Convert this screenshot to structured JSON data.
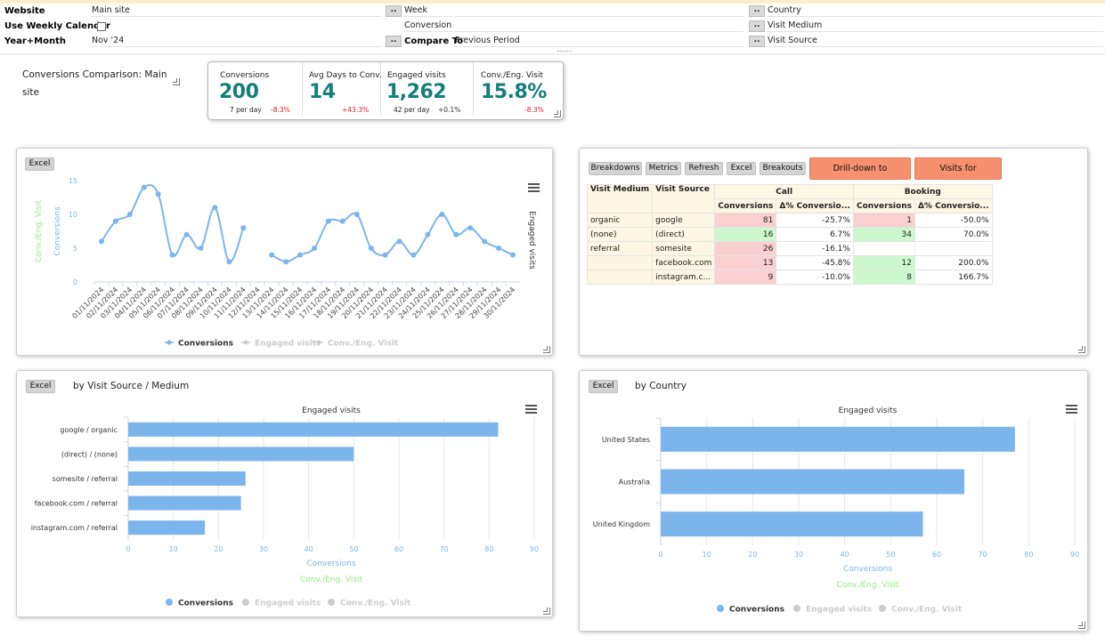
{
  "filters": {
    "website_label": "Website",
    "website_value": "Main site",
    "weekly_label": "Use Weekly Calendar",
    "yearmonth_label": "Year+Month",
    "yearmonth_value": "Nov '24",
    "week_label": "Week",
    "conversion_label": "Conversion",
    "compare_label": "Compare To",
    "compare_value": "Previous Period",
    "country_label": "Country",
    "medium_label": "Visit Medium",
    "source_label": "Visit Source",
    "dd_label": ".."
  },
  "comparison": {
    "title": "Conversions Comparison: Main site",
    "kpis": [
      {
        "label": "Conversions",
        "value": "200",
        "sub": "7 per day",
        "change": "-8.3%"
      },
      {
        "label": "Avg Days to Conv.",
        "value": "14",
        "sub": "",
        "change": "+43.3%"
      },
      {
        "label": "Engaged visits",
        "value": "1,262",
        "sub": "42 per day",
        "change": "+0.1%"
      },
      {
        "label": "Conv./Eng. Visit",
        "value": "15.8%",
        "sub": "",
        "change": "-8.3%"
      }
    ]
  },
  "line_panel": {
    "excel_label": "Excel",
    "colors": {
      "conversions": "#7cb5ec",
      "conv_eng": "#90ed7d",
      "inactive": "#cccccc"
    }
  },
  "pivot": {
    "buttons": [
      "Breakdowns",
      "Metrics",
      "Refresh",
      "Excel",
      "Breakouts"
    ],
    "drill_label": "Drill-down to Highlighted",
    "visits_label": "Visits for Highlighted",
    "col_medium": "Visit Medium",
    "col_source": "Visit Source",
    "group_call": "Call",
    "group_booking": "Booking",
    "sub_conv": "Conversions",
    "sub_delta": "Δ% Conversio...",
    "rows": [
      {
        "medium": "organic",
        "source": "google",
        "call_conv": "81",
        "call_delta": "-25.7%",
        "book_conv": "1",
        "book_delta": "-50.0%",
        "cc": "red",
        "bc": "red"
      },
      {
        "medium": "(none)",
        "source": "(direct)",
        "call_conv": "16",
        "call_delta": "6.7%",
        "book_conv": "34",
        "book_delta": "70.0%",
        "cc": "grn",
        "bc": "grn"
      },
      {
        "medium": "referral",
        "source": "somesite",
        "call_conv": "26",
        "call_delta": "-16.1%",
        "book_conv": "",
        "book_delta": "",
        "cc": "red",
        "bc": ""
      },
      {
        "medium": "",
        "source": "facebook.com",
        "call_conv": "13",
        "call_delta": "-45.8%",
        "book_conv": "12",
        "book_delta": "200.0%",
        "cc": "red",
        "bc": "grn"
      },
      {
        "medium": "",
        "source": "instagram.c...",
        "call_conv": "9",
        "call_delta": "-10.0%",
        "book_conv": "8",
        "book_delta": "166.7%",
        "cc": "red",
        "bc": "grn"
      }
    ]
  },
  "source_panel": {
    "excel_label": "Excel",
    "title": "by Visit Source / Medium"
  },
  "country_panel": {
    "excel_label": "Excel",
    "title": "by Country"
  },
  "chart_data": [
    {
      "type": "line",
      "title": "",
      "categories": [
        "01/11/2024",
        "02/11/2024",
        "03/11/2024",
        "04/11/2024",
        "05/11/2024",
        "06/11/2024",
        "07/11/2024",
        "08/11/2024",
        "09/11/2024",
        "10/11/2024",
        "11/11/2024",
        "12/11/2024",
        "13/11/2024",
        "14/11/2024",
        "15/11/2024",
        "16/11/2024",
        "17/11/2024",
        "18/11/2024",
        "19/11/2024",
        "20/11/2024",
        "21/11/2024",
        "22/11/2024",
        "23/11/2024",
        "24/11/2024",
        "25/11/2024",
        "26/11/2024",
        "27/11/2024",
        "28/11/2024",
        "29/11/2024",
        "30/11/2024"
      ],
      "series": [
        {
          "name": "Conversions",
          "values": [
            6,
            9,
            10,
            14,
            13,
            4,
            7,
            5,
            11,
            3,
            8,
            null,
            4,
            3,
            4,
            5,
            9,
            9,
            10,
            5,
            4,
            6,
            4,
            7,
            10,
            7,
            8,
            6,
            5,
            4
          ]
        }
      ],
      "ylabel_left": "Conversions",
      "ylabel_left2": "Conv./Eng. Visit",
      "ylabel_right": "Engaged visits",
      "yticks": [
        "0",
        "5",
        "10",
        "15"
      ],
      "ylim": [
        0,
        15
      ],
      "legend": [
        "Conversions",
        "Engaged visits",
        "Conv./Eng. Visit"
      ],
      "legend_position": "bottom"
    },
    {
      "type": "bar",
      "orientation": "horizontal",
      "categories": [
        "google / organic",
        "(direct) / (none)",
        "somesite / referral",
        "facebook.com / referral",
        "instagram.com / referral"
      ],
      "values": [
        82,
        50,
        26,
        25,
        17
      ],
      "series_label": "Engaged visits",
      "xlabel": "Conversions",
      "xlabel2": "Conv./Eng. Visit",
      "xticks": [
        "0",
        "10",
        "20",
        "30",
        "40",
        "50",
        "60",
        "70",
        "80",
        "90"
      ],
      "xlim": [
        0,
        90
      ],
      "legend": [
        "Conversions",
        "Engaged visits",
        "Conv./Eng. Visit"
      ],
      "legend_position": "bottom"
    },
    {
      "type": "bar",
      "orientation": "horizontal",
      "categories": [
        "United States",
        "Australia",
        "United Kingdom"
      ],
      "values": [
        77,
        66,
        57
      ],
      "series_label": "Engaged visits",
      "xlabel": "Conversions",
      "xlabel2": "Conv./Eng. Visit",
      "xticks": [
        "0",
        "10",
        "20",
        "30",
        "40",
        "50",
        "60",
        "70",
        "80",
        "90"
      ],
      "xlim": [
        0,
        90
      ],
      "legend": [
        "Conversions",
        "Engaged visits",
        "Conv./Eng. Visit"
      ],
      "legend_position": "bottom"
    }
  ]
}
